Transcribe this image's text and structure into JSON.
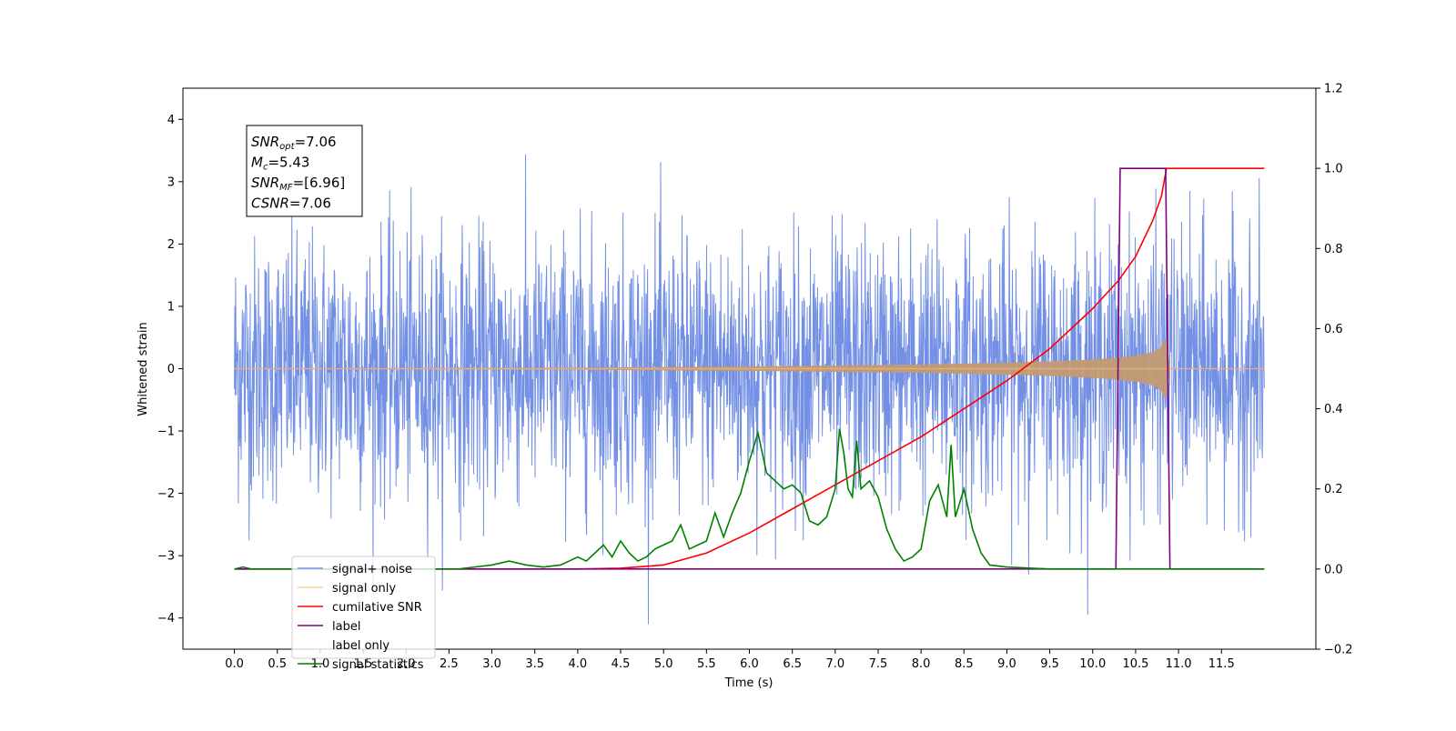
{
  "chart_data": {
    "type": "line",
    "xlabel": "Time (s)",
    "ylabel": "Whitened strain",
    "xlim": [
      -0.6,
      12.6
    ],
    "ylim": [
      -4.5,
      4.5
    ],
    "y2lim": [
      -0.2,
      1.2
    ],
    "x_ticks": [
      0.0,
      0.5,
      1.0,
      1.5,
      2.0,
      2.5,
      3.0,
      3.5,
      4.0,
      4.5,
      5.0,
      5.5,
      6.0,
      6.5,
      7.0,
      7.5,
      8.0,
      8.5,
      9.0,
      9.5,
      10.0,
      10.5,
      11.0,
      11.5
    ],
    "x_tick_labels": [
      "0.0",
      "0.5",
      "1.0",
      "1.5",
      "2.0",
      "2.5",
      "3.0",
      "3.5",
      "4.0",
      "4.5",
      "5.0",
      "5.5",
      "6.0",
      "6.5",
      "7.0",
      "7.5",
      "8.0",
      "8.5",
      "9.0",
      "9.5",
      "10.0",
      "10.5",
      "11.0",
      "11.5"
    ],
    "y_ticks": [
      4,
      3,
      2,
      1,
      0,
      -1,
      -2,
      -3,
      -4
    ],
    "y_tick_labels": [
      "4",
      "3",
      "2",
      "1",
      "0",
      "−1",
      "−2",
      "−3",
      "−4"
    ],
    "y2_ticks": [
      1.2,
      1.0,
      0.8,
      0.6,
      0.4,
      0.2,
      0.0,
      -0.2
    ],
    "y2_tick_labels": [
      "1.2",
      "1.0",
      "0.8",
      "0.6",
      "0.4",
      "0.2",
      "0.0",
      "−0.2"
    ],
    "grid": false,
    "legend_position": "lower-left",
    "annotation": {
      "lines": [
        {
          "var": "SNR",
          "sub": "opt",
          "value": "=7.06"
        },
        {
          "var": "M",
          "sub": "c",
          "value": "=5.43"
        },
        {
          "var": "SNR",
          "sub": "MF",
          "value": "=[6.96]"
        },
        {
          "var": "CSNR",
          "sub": "",
          "value": "=7.06"
        }
      ]
    },
    "series": [
      {
        "name": "signal+ noise",
        "axis": "left",
        "color": "#6c8ae4",
        "description": "dense noise trace, roughly ±1 sigma band with peaks to about ±4"
      },
      {
        "name": "signal only",
        "axis": "left",
        "color": "#f5b041",
        "envelope": {
          "x": [
            0.0,
            2,
            4,
            5,
            6,
            7,
            8,
            9,
            9.5,
            10,
            10.3,
            10.5,
            10.7,
            10.8,
            10.85,
            10.9,
            12.0
          ],
          "amplitude": [
            0.0,
            0.005,
            0.01,
            0.02,
            0.03,
            0.045,
            0.06,
            0.09,
            0.11,
            0.14,
            0.17,
            0.2,
            0.26,
            0.34,
            0.5,
            0.0,
            0.0
          ]
        }
      },
      {
        "name": "cumilative SNR",
        "axis": "right",
        "color": "#ff0000",
        "x": [
          0.0,
          4.0,
          4.5,
          5.0,
          5.5,
          6.0,
          6.5,
          7.0,
          7.5,
          8.0,
          8.5,
          9.0,
          9.5,
          10.0,
          10.3,
          10.5,
          10.7,
          10.8,
          10.86,
          12.0
        ],
        "y": [
          0.0,
          0.0,
          0.002,
          0.01,
          0.04,
          0.09,
          0.15,
          0.21,
          0.27,
          0.33,
          0.4,
          0.47,
          0.55,
          0.65,
          0.72,
          0.78,
          0.87,
          0.93,
          1.0,
          1.0
        ]
      },
      {
        "name": "label",
        "axis": "right",
        "color": "#800080",
        "x": [
          0.0,
          10.27,
          10.32,
          10.85,
          10.9,
          12.0
        ],
        "y": [
          0.0,
          0.0,
          1.0,
          1.0,
          0.0,
          0.0
        ]
      },
      {
        "name": "label only",
        "axis": "right",
        "color": "#ffffff",
        "hidden_behind": true
      },
      {
        "name": "signal statistics",
        "axis": "right",
        "color": "#008000",
        "x": [
          0.0,
          0.1,
          0.2,
          2.6,
          3.0,
          3.2,
          3.4,
          3.6,
          3.8,
          3.9,
          4.0,
          4.1,
          4.2,
          4.3,
          4.4,
          4.5,
          4.6,
          4.7,
          4.8,
          4.9,
          5.0,
          5.1,
          5.2,
          5.3,
          5.4,
          5.5,
          5.6,
          5.7,
          5.8,
          5.9,
          6.0,
          6.1,
          6.2,
          6.3,
          6.4,
          6.5,
          6.6,
          6.7,
          6.8,
          6.9,
          7.0,
          7.05,
          7.1,
          7.15,
          7.2,
          7.25,
          7.3,
          7.4,
          7.5,
          7.6,
          7.7,
          7.8,
          7.9,
          8.0,
          8.1,
          8.2,
          8.3,
          8.35,
          8.4,
          8.5,
          8.6,
          8.7,
          8.8,
          9.0,
          9.5,
          12.0
        ],
        "y": [
          0.0,
          0.005,
          0.0,
          0.0,
          0.01,
          0.02,
          0.01,
          0.005,
          0.01,
          0.02,
          0.03,
          0.02,
          0.04,
          0.06,
          0.03,
          0.07,
          0.04,
          0.02,
          0.03,
          0.05,
          0.06,
          0.07,
          0.11,
          0.05,
          0.06,
          0.07,
          0.14,
          0.08,
          0.14,
          0.19,
          0.27,
          0.34,
          0.24,
          0.22,
          0.2,
          0.21,
          0.19,
          0.12,
          0.11,
          0.13,
          0.2,
          0.35,
          0.29,
          0.2,
          0.18,
          0.32,
          0.2,
          0.22,
          0.18,
          0.1,
          0.05,
          0.02,
          0.03,
          0.05,
          0.17,
          0.21,
          0.13,
          0.31,
          0.13,
          0.2,
          0.1,
          0.04,
          0.01,
          0.005,
          0.0,
          0.0
        ]
      }
    ]
  }
}
